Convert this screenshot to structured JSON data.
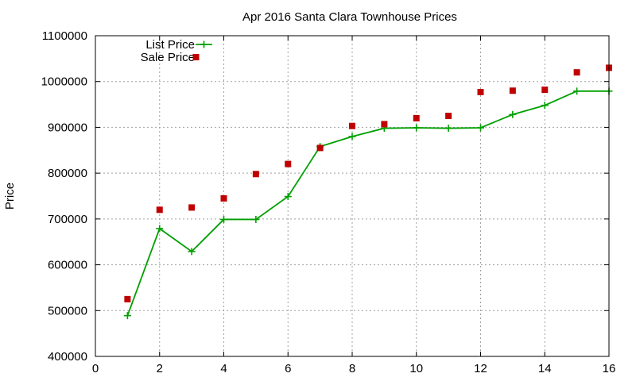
{
  "chart_data": {
    "type": "line",
    "title": "Apr 2016 Santa Clara Townhouse Prices",
    "xlabel": "",
    "ylabel": "Price",
    "xlim": [
      0,
      16
    ],
    "ylim": [
      400000,
      1100000
    ],
    "xticks": [
      0,
      2,
      4,
      6,
      8,
      10,
      12,
      14,
      16
    ],
    "yticks": [
      400000,
      500000,
      600000,
      700000,
      800000,
      900000,
      1000000,
      1100000
    ],
    "grid": true,
    "legend_position": "top-left",
    "series": [
      {
        "name": "List Price",
        "style": "linespoints",
        "marker": "plus",
        "color": "#00a000",
        "x": [
          1,
          2,
          3,
          4,
          5,
          6,
          7,
          8,
          9,
          10,
          11,
          12,
          13,
          14,
          15,
          16
        ],
        "y": [
          489000,
          679000,
          629000,
          699000,
          699000,
          749000,
          858000,
          880000,
          898000,
          899000,
          898000,
          899000,
          928000,
          948000,
          979000,
          979000
        ]
      },
      {
        "name": "Sale Price",
        "style": "points",
        "marker": "square",
        "color": "#c00000",
        "x": [
          1,
          2,
          3,
          4,
          5,
          6,
          7,
          8,
          9,
          10,
          11,
          12,
          13,
          14,
          15,
          16
        ],
        "y": [
          525000,
          720000,
          725000,
          745000,
          798000,
          820000,
          855000,
          903000,
          907000,
          920000,
          925000,
          977000,
          980000,
          982000,
          1020000,
          1030000
        ]
      }
    ]
  }
}
